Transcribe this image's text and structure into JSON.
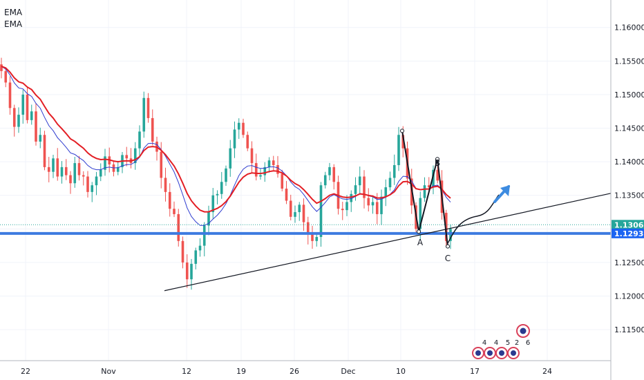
{
  "legend": [
    "EMA",
    "EMA"
  ],
  "chart_data": {
    "type": "candlestick",
    "instrument_hint": "EURUSD-like",
    "y_ticks": [
      "1.16000",
      "1.15500",
      "1.15000",
      "1.14500",
      "1.14000",
      "1.13500",
      "1.13000",
      "1.12500",
      "1.12000",
      "1.11500"
    ],
    "x_ticks": [
      "22",
      "Nov",
      "12",
      "19",
      "26",
      "Dec",
      "10",
      "17",
      "24"
    ],
    "ylim": [
      1.1132,
      1.1655
    ],
    "price_tags": [
      {
        "value": 1.13062,
        "label": "1.13062",
        "color": "#26a69a"
      },
      {
        "value": 1.12933,
        "label": "1.12933",
        "color": "#1c64f2"
      }
    ],
    "horizontal_level": 1.12933,
    "trendline": {
      "from": [
        "12",
        1.1208
      ],
      "to": [
        "end",
        1.1353
      ]
    },
    "pattern_labels": [
      {
        "label": "A",
        "price": 1.1296
      },
      {
        "label": "B",
        "price": 1.1404
      },
      {
        "label": "C",
        "price": 1.1274
      }
    ],
    "event_markers": [
      "4",
      "4",
      "5",
      "2",
      "6"
    ],
    "colors": {
      "up": "#26a69a",
      "down": "#ef5350",
      "ema_fast": "#2e3ccf",
      "ema_slow": "#e31e24",
      "level": "#3d7be0",
      "arrow": "#3d8be0"
    },
    "close_series": [
      1.1535,
      1.1518,
      1.148,
      1.1452,
      1.147,
      1.15,
      1.1462,
      1.1475,
      1.143,
      1.144,
      1.1392,
      1.1385,
      1.1405,
      1.1378,
      1.1392,
      1.138,
      1.1368,
      1.1398,
      1.138,
      1.1378,
      1.1355,
      1.1365,
      1.1378,
      1.1388,
      1.1408,
      1.1396,
      1.1385,
      1.1392,
      1.141,
      1.1405,
      1.1398,
      1.142,
      1.1445,
      1.1495,
      1.1465,
      1.143,
      1.1415,
      1.1376,
      1.1355,
      1.133,
      1.1322,
      1.1282,
      1.125,
      1.1225,
      1.1248,
      1.1268,
      1.1275,
      1.1305,
      1.1325,
      1.135,
      1.1352,
      1.137,
      1.139,
      1.142,
      1.1448,
      1.1458,
      1.144,
      1.142,
      1.1398,
      1.1378,
      1.138,
      1.1392,
      1.1402,
      1.1395,
      1.1382,
      1.136,
      1.1342,
      1.1318,
      1.1325,
      1.1336,
      1.131,
      1.1292,
      1.1282,
      1.1288,
      1.1365,
      1.138,
      1.1392,
      1.137,
      1.133,
      1.1328,
      1.134,
      1.1352,
      1.1365,
      1.1378,
      1.1346,
      1.1335,
      1.134,
      1.1322,
      1.1348,
      1.1362,
      1.1376,
      1.1395,
      1.144,
      1.142,
      1.1375,
      1.1335,
      1.13,
      1.1346,
      1.1365,
      1.1362,
      1.1388,
      1.1372,
      1.1324,
      1.1282,
      1.13
    ]
  }
}
